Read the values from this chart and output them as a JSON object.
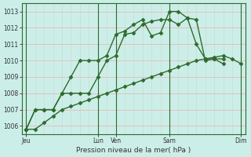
{
  "bg_color": "#cceee8",
  "grid_color_h": "#e8b8b8",
  "grid_color_v": "#c8d8d0",
  "line_color": "#2d6b2d",
  "marker": "D",
  "markersize": 2.5,
  "linewidth": 1.0,
  "xlabel": "Pression niveau de la mer( hPa )",
  "ylim": [
    1005.5,
    1013.5
  ],
  "yticks": [
    1006,
    1007,
    1008,
    1009,
    1010,
    1011,
    1012,
    1013
  ],
  "xlabel_fontsize": 6.5,
  "tick_fontsize": 5.5,
  "xtick_positions": [
    0,
    8,
    10,
    16,
    24
  ],
  "xtick_labels": [
    "Jeu",
    "Lun",
    "Ven",
    "Sam",
    "Dim"
  ],
  "vline_positions": [
    0,
    8,
    10,
    16,
    24
  ],
  "xmax": 24,
  "line1_x": [
    0,
    1,
    2,
    3,
    4,
    5,
    6,
    7,
    8,
    9,
    10,
    11,
    12,
    13,
    14,
    15,
    16,
    17,
    18,
    19,
    20,
    21,
    22,
    23,
    24
  ],
  "line1_y": [
    1005.8,
    1005.8,
    1006.2,
    1006.6,
    1007.0,
    1007.2,
    1007.4,
    1007.6,
    1007.8,
    1008.0,
    1008.2,
    1008.4,
    1008.6,
    1008.8,
    1009.0,
    1009.2,
    1009.4,
    1009.6,
    1009.8,
    1010.0,
    1010.1,
    1010.2,
    1010.3,
    1010.1,
    1009.8
  ],
  "line2_x": [
    0,
    1,
    2,
    3,
    4,
    5,
    6,
    7,
    8,
    9,
    10,
    11,
    12,
    13,
    14,
    15,
    16,
    17,
    18,
    19,
    20,
    21,
    22
  ],
  "line2_y": [
    1005.8,
    1007.0,
    1007.0,
    1007.0,
    1008.0,
    1008.0,
    1008.0,
    1008.0,
    1009.0,
    1010.0,
    1010.3,
    1011.6,
    1011.7,
    1012.2,
    1012.4,
    1012.5,
    1012.5,
    1012.2,
    1012.6,
    1011.0,
    1010.1,
    1010.1,
    1009.8
  ],
  "line3_x": [
    0,
    1,
    2,
    3,
    4,
    5,
    6,
    7,
    8,
    9,
    10,
    11,
    12,
    13,
    14,
    15,
    16,
    17,
    18,
    19,
    20,
    21,
    22
  ],
  "line3_y": [
    1005.8,
    1007.0,
    1007.0,
    1007.0,
    1008.0,
    1009.0,
    1010.0,
    1010.0,
    1010.0,
    1010.3,
    1011.6,
    1011.8,
    1012.2,
    1012.5,
    1011.5,
    1011.7,
    1013.0,
    1013.0,
    1012.6,
    1012.5,
    1010.0,
    1010.1,
    1010.1
  ]
}
